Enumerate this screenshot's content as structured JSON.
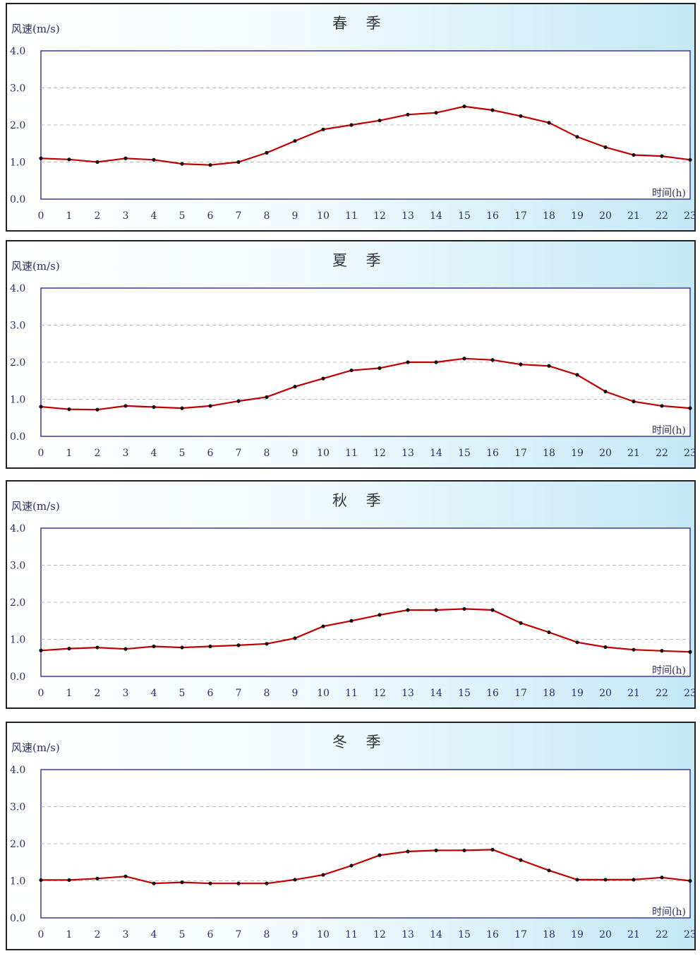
{
  "chart_data": [
    {
      "type": "line",
      "title": "春 季",
      "ylabel": "风速(m/s)",
      "xlabel": "时间(h)",
      "ylim": [
        0,
        4
      ],
      "yticks": [
        "0.0",
        "1.0",
        "2.0",
        "3.0",
        "4.0"
      ],
      "x": [
        "0",
        "1",
        "2",
        "3",
        "4",
        "5",
        "6",
        "7",
        "8",
        "9",
        "10",
        "11",
        "12",
        "13",
        "14",
        "15",
        "16",
        "17",
        "18",
        "19",
        "20",
        "21",
        "22",
        "23"
      ],
      "series": [
        {
          "values": [
            1.1,
            1.07,
            1.0,
            1.1,
            1.06,
            0.95,
            0.92,
            1.0,
            1.25,
            1.57,
            1.88,
            2.0,
            2.12,
            2.28,
            2.33,
            2.5,
            2.4,
            2.24,
            2.06,
            1.68,
            1.4,
            1.19,
            1.16,
            1.06
          ]
        }
      ],
      "grid": true,
      "colors": {
        "line": "#c00000",
        "point": "#111111"
      }
    },
    {
      "type": "line",
      "title": "夏 季",
      "ylabel": "风速(m/s)",
      "xlabel": "时间(h)",
      "ylim": [
        0,
        4
      ],
      "yticks": [
        "0.0",
        "1.0",
        "2.0",
        "3.0",
        "4.0"
      ],
      "x": [
        "0",
        "1",
        "2",
        "3",
        "4",
        "5",
        "6",
        "7",
        "8",
        "9",
        "10",
        "11",
        "12",
        "13",
        "14",
        "15",
        "16",
        "17",
        "18",
        "19",
        "20",
        "21",
        "22",
        "23"
      ],
      "series": [
        {
          "values": [
            0.8,
            0.73,
            0.72,
            0.82,
            0.79,
            0.76,
            0.82,
            0.95,
            1.06,
            1.34,
            1.56,
            1.78,
            1.84,
            2.0,
            2.0,
            2.1,
            2.06,
            1.94,
            1.9,
            1.66,
            1.21,
            0.94,
            0.82,
            0.76
          ]
        }
      ],
      "grid": true,
      "colors": {
        "line": "#c00000",
        "point": "#111111"
      }
    },
    {
      "type": "line",
      "title": "秋 季",
      "ylabel": "风速(m/s)",
      "xlabel": "时间(h)",
      "ylim": [
        0,
        4
      ],
      "yticks": [
        "0.0",
        "1.0",
        "2.0",
        "3.0",
        "4.0"
      ],
      "x": [
        "0",
        "1",
        "2",
        "3",
        "4",
        "5",
        "6",
        "7",
        "8",
        "9",
        "10",
        "11",
        "12",
        "13",
        "14",
        "15",
        "16",
        "17",
        "18",
        "19",
        "20",
        "21",
        "22",
        "23"
      ],
      "series": [
        {
          "values": [
            0.7,
            0.75,
            0.78,
            0.74,
            0.81,
            0.78,
            0.81,
            0.84,
            0.88,
            1.03,
            1.35,
            1.5,
            1.66,
            1.79,
            1.79,
            1.82,
            1.79,
            1.44,
            1.19,
            0.92,
            0.79,
            0.72,
            0.69,
            0.66
          ]
        }
      ],
      "grid": true,
      "colors": {
        "line": "#c00000",
        "point": "#111111"
      }
    },
    {
      "type": "line",
      "title": "冬 季",
      "ylabel": "风速(m/s)",
      "xlabel": "时间(h)",
      "ylim": [
        0,
        4
      ],
      "yticks": [
        "0.0",
        "1.0",
        "2.0",
        "3.0",
        "4.0"
      ],
      "x": [
        "0",
        "1",
        "2",
        "3",
        "4",
        "5",
        "6",
        "7",
        "8",
        "9",
        "10",
        "11",
        "12",
        "13",
        "14",
        "15",
        "16",
        "17",
        "18",
        "19",
        "20",
        "21",
        "22",
        "23"
      ],
      "series": [
        {
          "values": [
            1.02,
            1.02,
            1.06,
            1.12,
            0.93,
            0.96,
            0.93,
            0.93,
            0.93,
            1.03,
            1.16,
            1.41,
            1.69,
            1.79,
            1.82,
            1.82,
            1.84,
            1.56,
            1.28,
            1.03,
            1.03,
            1.03,
            1.09,
            1.0
          ]
        }
      ],
      "grid": true,
      "colors": {
        "line": "#c00000",
        "point": "#111111"
      }
    }
  ]
}
